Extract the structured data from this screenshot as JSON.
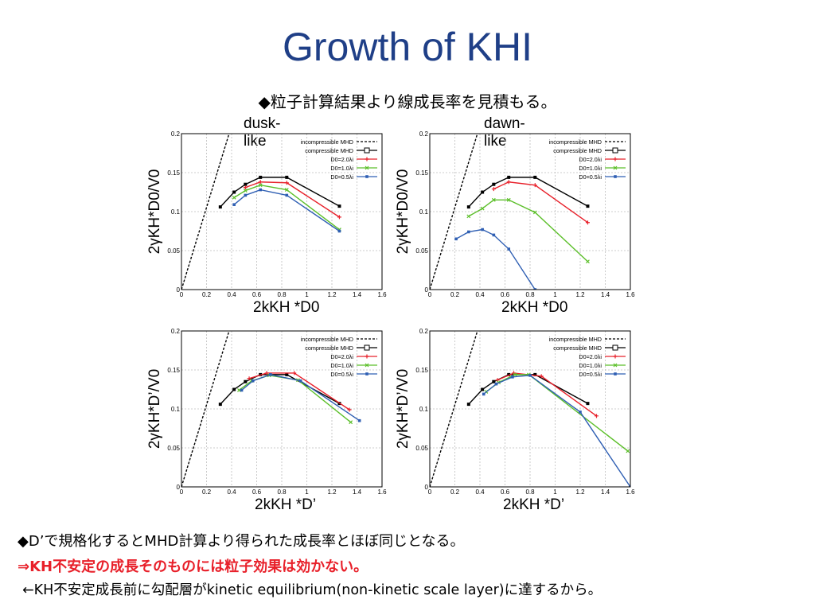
{
  "slide": {
    "title": "Growth of KHI",
    "subtitle": "◆粒子計算結果より線成長率を見積もる。",
    "notes": [
      "◆D’で規格化するとMHD計算より得られた成長率とほぼ同じとなる。",
      "⇒KH不安定の成長そのものには粒子効果は効かない。",
      "←KH不安定成長前に勾配層がkinetic equilibrium(non-kinetic scale layer)に達するから。"
    ]
  },
  "panels": [
    {
      "title": "dusk-like",
      "ylabel": "2γKH*D0/V0",
      "xlabel": "2kKH *D0"
    },
    {
      "title": "dawn-like",
      "ylabel": "2γKH*D0/V0",
      "xlabel": "2kKH *D0"
    },
    {
      "title": "",
      "ylabel": "2γKH*D’/V0",
      "xlabel": "2kKH *D’"
    },
    {
      "title": "",
      "ylabel": "2γKH*D’/V0",
      "xlabel": "2kKH *D’"
    }
  ],
  "chart_data": [
    {
      "type": "line",
      "title": "dusk-like",
      "xlabel": "2kKH *D0",
      "ylabel": "2γKH*D0/V0",
      "xlim": [
        0,
        1.6
      ],
      "ylim": [
        0,
        0.2
      ],
      "xticks": [
        "0",
        "0.2",
        "0.4",
        "0.6",
        "0.8",
        "1",
        "1.2",
        "1.4",
        "1.6"
      ],
      "yticks": [
        "0",
        "0.05",
        "0.1",
        "0.15",
        "0.2"
      ],
      "grid": true,
      "legend": "top-right",
      "series": [
        {
          "name": "incompressible MHD",
          "color": "#000000",
          "dash": true,
          "marker": "none",
          "points": [
            [
              0,
              0
            ],
            [
              0.38,
              0.2
            ]
          ]
        },
        {
          "name": "compressible MHD",
          "color": "#000000",
          "marker": "square",
          "points": [
            [
              0.31,
              0.106
            ],
            [
              0.42,
              0.125
            ],
            [
              0.51,
              0.135
            ],
            [
              0.63,
              0.144
            ],
            [
              0.84,
              0.144
            ],
            [
              1.26,
              0.107
            ]
          ]
        },
        {
          "name": "D0=2.0λi",
          "color": "#e8202a",
          "marker": "plus",
          "points": [
            [
              0.51,
              0.131
            ],
            [
              0.63,
              0.138
            ],
            [
              0.84,
              0.137
            ],
            [
              1.26,
              0.093
            ]
          ]
        },
        {
          "name": "D0=1.0λi",
          "color": "#5cbf2a",
          "marker": "x",
          "points": [
            [
              0.42,
              0.118
            ],
            [
              0.51,
              0.127
            ],
            [
              0.63,
              0.134
            ],
            [
              0.84,
              0.128
            ],
            [
              1.26,
              0.077
            ]
          ]
        },
        {
          "name": "D0=0.5λi",
          "color": "#2f5fb3",
          "marker": "star",
          "points": [
            [
              0.42,
              0.109
            ],
            [
              0.51,
              0.121
            ],
            [
              0.63,
              0.128
            ],
            [
              0.84,
              0.121
            ],
            [
              1.26,
              0.075
            ]
          ]
        }
      ]
    },
    {
      "type": "line",
      "title": "dawn-like",
      "xlabel": "2kKH *D0",
      "ylabel": "2γKH*D0/V0",
      "xlim": [
        0,
        1.6
      ],
      "ylim": [
        0,
        0.2
      ],
      "xticks": [
        "0",
        "0.2",
        "0.4",
        "0.6",
        "0.8",
        "1",
        "1.2",
        "1.4",
        "1.6"
      ],
      "yticks": [
        "0",
        "0.05",
        "0.1",
        "0.15",
        "0.2"
      ],
      "grid": true,
      "legend": "top-right",
      "series": [
        {
          "name": "incompressible MHD",
          "color": "#000000",
          "dash": true,
          "marker": "none",
          "points": [
            [
              0,
              0
            ],
            [
              0.38,
              0.2
            ]
          ]
        },
        {
          "name": "compressible MHD",
          "color": "#000000",
          "marker": "square",
          "points": [
            [
              0.31,
              0.106
            ],
            [
              0.42,
              0.125
            ],
            [
              0.51,
              0.135
            ],
            [
              0.63,
              0.144
            ],
            [
              0.84,
              0.144
            ],
            [
              1.26,
              0.107
            ]
          ]
        },
        {
          "name": "D0=2.0λi",
          "color": "#e8202a",
          "marker": "plus",
          "points": [
            [
              0.51,
              0.129
            ],
            [
              0.63,
              0.138
            ],
            [
              0.84,
              0.134
            ],
            [
              1.26,
              0.086
            ]
          ]
        },
        {
          "name": "D0=1.0λi",
          "color": "#5cbf2a",
          "marker": "x",
          "points": [
            [
              0.31,
              0.094
            ],
            [
              0.42,
              0.104
            ],
            [
              0.51,
              0.115
            ],
            [
              0.63,
              0.115
            ],
            [
              0.84,
              0.099
            ],
            [
              1.26,
              0.036
            ]
          ]
        },
        {
          "name": "D0=0.5λi",
          "color": "#2f5fb3",
          "marker": "star",
          "points": [
            [
              0.21,
              0.065
            ],
            [
              0.31,
              0.074
            ],
            [
              0.42,
              0.077
            ],
            [
              0.51,
              0.07
            ],
            [
              0.63,
              0.052
            ],
            [
              0.84,
              0.0
            ]
          ]
        }
      ]
    },
    {
      "type": "line",
      "title": "",
      "xlabel": "2kKH *D’",
      "ylabel": "2γKH*D’/V0",
      "xlim": [
        0,
        1.6
      ],
      "ylim": [
        0,
        0.2
      ],
      "xticks": [
        "0",
        "0.2",
        "0.4",
        "0.6",
        "0.8",
        "1",
        "1.2",
        "1.4",
        "1.6"
      ],
      "yticks": [
        "0",
        "0.05",
        "0.1",
        "0.15",
        "0.2"
      ],
      "grid": true,
      "legend": "top-right",
      "series": [
        {
          "name": "incompressible MHD",
          "color": "#000000",
          "dash": true,
          "marker": "none",
          "points": [
            [
              0,
              0
            ],
            [
              0.38,
              0.2
            ]
          ]
        },
        {
          "name": "compressible MHD",
          "color": "#000000",
          "marker": "square",
          "points": [
            [
              0.31,
              0.106
            ],
            [
              0.42,
              0.125
            ],
            [
              0.51,
              0.135
            ],
            [
              0.63,
              0.144
            ],
            [
              0.84,
              0.144
            ],
            [
              1.26,
              0.107
            ]
          ]
        },
        {
          "name": "D0=2.0λi",
          "color": "#e8202a",
          "marker": "plus",
          "points": [
            [
              0.54,
              0.139
            ],
            [
              0.68,
              0.146
            ],
            [
              0.9,
              0.146
            ],
            [
              1.34,
              0.099
            ]
          ]
        },
        {
          "name": "D0=1.0λi",
          "color": "#5cbf2a",
          "marker": "x",
          "points": [
            [
              0.46,
              0.124
            ],
            [
              0.56,
              0.136
            ],
            [
              0.7,
              0.143
            ],
            [
              0.93,
              0.137
            ],
            [
              1.35,
              0.083
            ]
          ]
        },
        {
          "name": "D0=0.5λi",
          "color": "#2f5fb3",
          "marker": "star",
          "points": [
            [
              0.48,
              0.124
            ],
            [
              0.57,
              0.136
            ],
            [
              0.71,
              0.144
            ],
            [
              0.95,
              0.136
            ],
            [
              1.42,
              0.085
            ]
          ]
        }
      ]
    },
    {
      "type": "line",
      "title": "",
      "xlabel": "2kKH *D’",
      "ylabel": "2γKH*D’/V0",
      "xlim": [
        0,
        1.6
      ],
      "ylim": [
        0,
        0.2
      ],
      "xticks": [
        "0",
        "0.2",
        "0.4",
        "0.6",
        "0.8",
        "1",
        "1.2",
        "1.4",
        "1.6"
      ],
      "yticks": [
        "0",
        "0.05",
        "0.1",
        "0.15",
        "0.2"
      ],
      "grid": true,
      "legend": "top-right",
      "series": [
        {
          "name": "incompressible MHD",
          "color": "#000000",
          "dash": true,
          "marker": "none",
          "points": [
            [
              0,
              0
            ],
            [
              0.38,
              0.2
            ]
          ]
        },
        {
          "name": "compressible MHD",
          "color": "#000000",
          "marker": "square",
          "points": [
            [
              0.31,
              0.106
            ],
            [
              0.42,
              0.125
            ],
            [
              0.51,
              0.135
            ],
            [
              0.63,
              0.144
            ],
            [
              0.84,
              0.144
            ],
            [
              1.26,
              0.107
            ]
          ]
        },
        {
          "name": "D0=2.0λi",
          "color": "#e8202a",
          "marker": "plus",
          "points": [
            [
              0.54,
              0.137
            ],
            [
              0.67,
              0.146
            ],
            [
              0.89,
              0.142
            ],
            [
              1.33,
              0.091
            ]
          ]
        },
        {
          "name": "D0=1.0λi",
          "color": "#5cbf2a",
          "marker": "x",
          "points": [
            [
              0.45,
              0.122
            ],
            [
              0.55,
              0.134
            ],
            [
              0.68,
              0.144
            ],
            [
              0.79,
              0.144
            ],
            [
              1.58,
              0.046
            ]
          ]
        },
        {
          "name": "D0=0.5λi",
          "color": "#2f5fb3",
          "marker": "star",
          "points": [
            [
              0.43,
              0.119
            ],
            [
              0.53,
              0.132
            ],
            [
              0.66,
              0.141
            ],
            [
              0.8,
              0.143
            ],
            [
              1.2,
              0.096
            ],
            [
              1.6,
              0.0
            ]
          ]
        }
      ]
    }
  ]
}
